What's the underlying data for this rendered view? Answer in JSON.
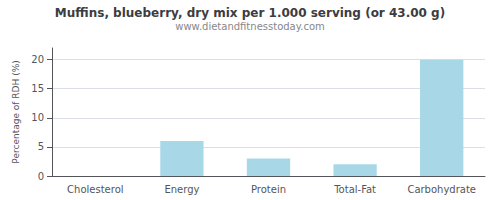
{
  "chart_data": {
    "type": "bar",
    "title": "Muffins, blueberry, dry mix per 1.000 serving (or 43.00 g)",
    "subtitle": "www.dietandfitnesstoday.com",
    "categories": [
      "Cholesterol",
      "Energy",
      "Protein",
      "Total-Fat",
      "Carbohydrate"
    ],
    "values": [
      0,
      6,
      3,
      2,
      20
    ],
    "color": "#a8d8e8",
    "ylabel": "Percentage of RDH (%)",
    "ylim": [
      0,
      22
    ],
    "yticks": [
      0,
      5,
      10,
      15,
      20
    ],
    "grid": true
  }
}
